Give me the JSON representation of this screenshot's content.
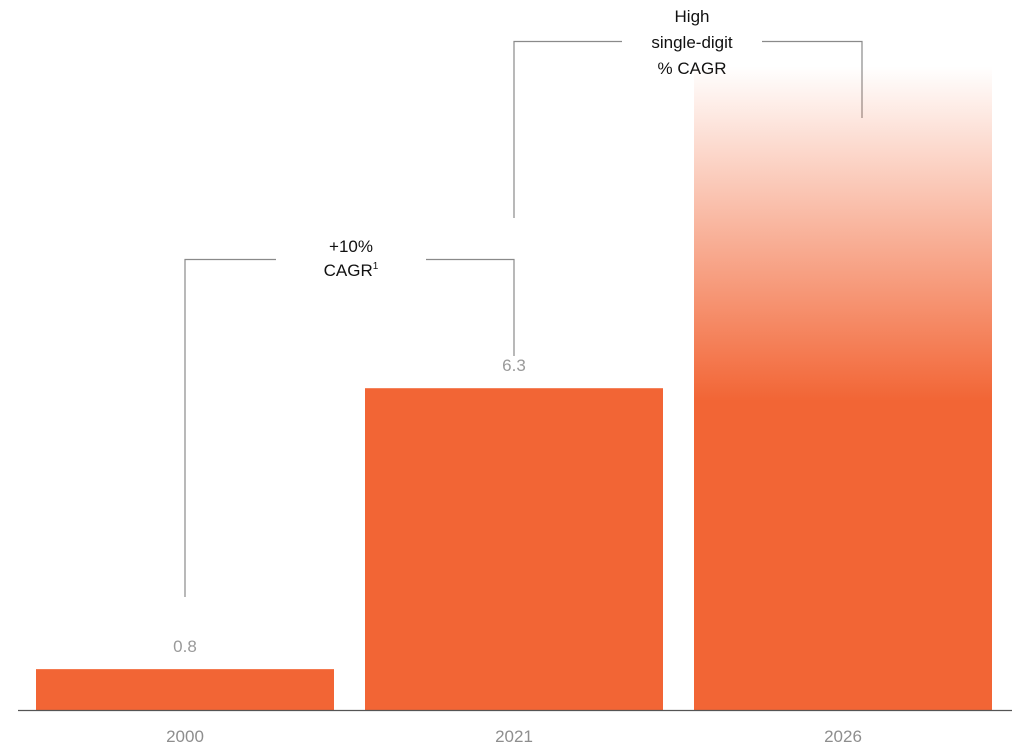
{
  "chart_data": {
    "type": "bar",
    "categories": [
      "2000",
      "2021",
      "2026"
    ],
    "values": [
      0.8,
      6.3,
      12.6
    ],
    "value_labels": [
      "0.8",
      "6.3",
      ""
    ],
    "ylim": [
      0,
      13.9
    ],
    "projected": [
      false,
      false,
      true
    ],
    "title": "",
    "xlabel": "",
    "ylabel": "",
    "grid": false,
    "bar_color": "#f26535",
    "annotations": [
      {
        "from": "2000",
        "to": "2021",
        "lines": [
          "+10%",
          "CAGR"
        ],
        "superscript": "1"
      },
      {
        "from": "2021",
        "to": "2026",
        "lines": [
          "High",
          "single-digit",
          "% CAGR"
        ],
        "superscript": ""
      }
    ]
  }
}
